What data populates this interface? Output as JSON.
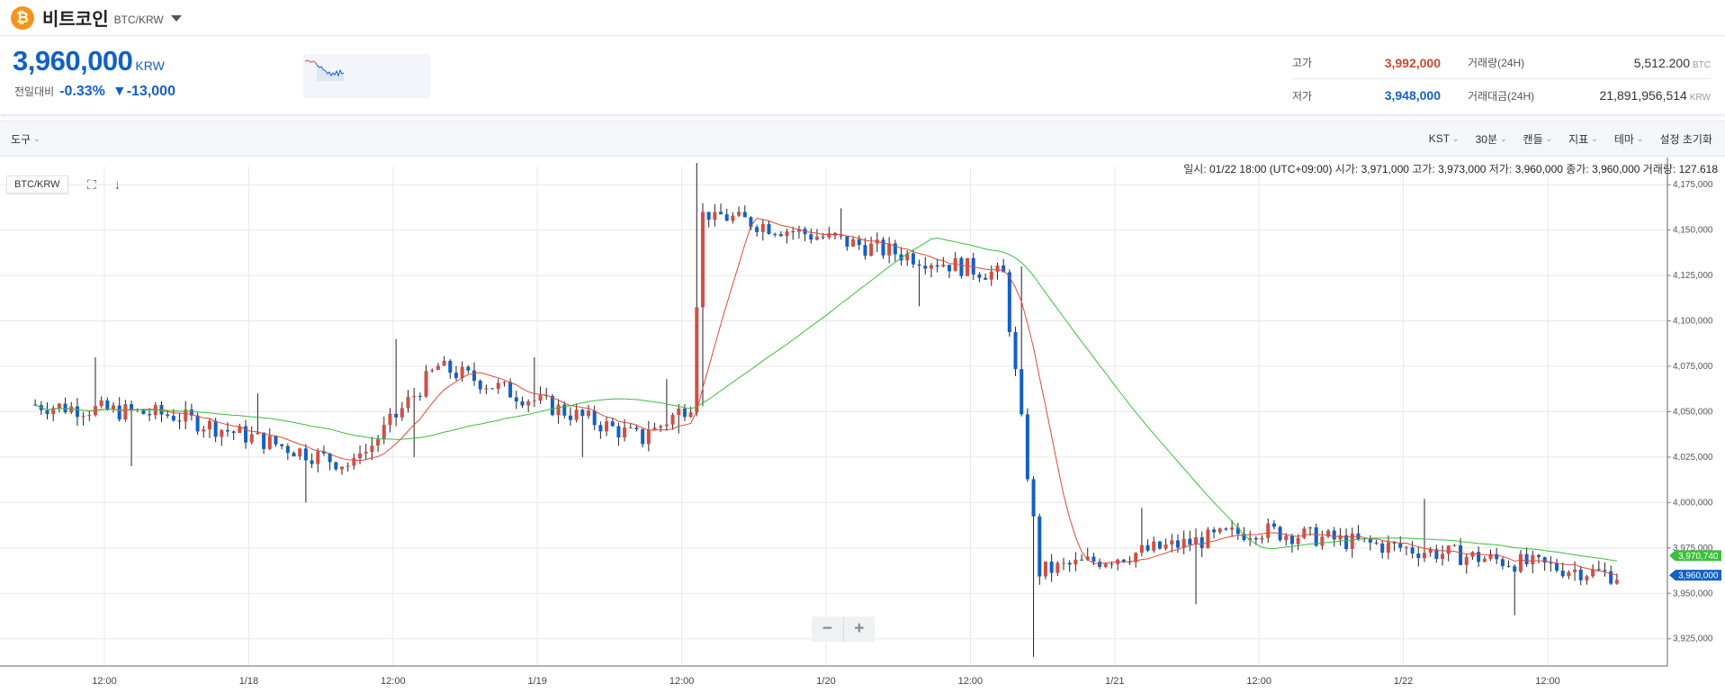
{
  "header": {
    "coin_symbol_glyph": "₿",
    "coin_name": "비트코인",
    "pair": "BTC/KRW"
  },
  "price": {
    "current": "3,960,000",
    "unit": "KRW",
    "change_label": "전일대비",
    "change_pct": "-0.33%",
    "change_amt": "▼-13,000"
  },
  "stats": {
    "high_label": "고가",
    "high_value": "3,992,000",
    "low_label": "저가",
    "low_value": "3,948,000",
    "volume_label": "거래량(24H)",
    "volume_value": "5,512.200",
    "volume_unit": "BTC",
    "trade_value_label": "거래대금(24H)",
    "trade_value_value": "21,891,956,514",
    "trade_value_unit": "KRW"
  },
  "toolbar": {
    "tools": "도구",
    "timezone": "KST",
    "interval": "30분",
    "chart_type": "캔들",
    "indicator": "지표",
    "theme": "테마",
    "reset": "설정 초기화"
  },
  "ohlc_info": {
    "datetime_label": "일시:",
    "datetime": "01/22 18:00 (UTC+09:00)",
    "open_label": "시가:",
    "open": "3,971,000",
    "high_label": "고가:",
    "high": "3,973,000",
    "low_label": "저가:",
    "low": "3,960,000",
    "close_label": "종가:",
    "close": "3,960,000",
    "volume_label": "거래량:",
    "volume": "127.618"
  },
  "chart_controls": {
    "symbol_tag": "BTC/KRW",
    "zoom_out": "−",
    "zoom_in": "+"
  },
  "colors": {
    "up": "#d24f45",
    "down": "#1261c4",
    "ma_short": "#e04a3a",
    "ma_long": "#3cbf3c",
    "grid": "#e6e8ec"
  },
  "chart_data": {
    "type": "candlestick",
    "interval": "30분",
    "pair": "BTC/KRW",
    "ylim": [
      3910000,
      4185000
    ],
    "y_ticks": [
      3925000,
      3950000,
      3975000,
      4000000,
      4025000,
      4050000,
      4075000,
      4100000,
      4125000,
      4150000,
      4175000
    ],
    "y_tick_labels": [
      "3,925,000",
      "3,950,000",
      "3,975,000",
      "4,000,000",
      "4,025,000",
      "4,050,000",
      "4,075,000",
      "4,100,000",
      "4,125,000",
      "4,150,000",
      "4,175,000"
    ],
    "x_tick_labels": [
      "12:00",
      "1/18",
      "12:00",
      "1/19",
      "12:00",
      "1/20",
      "12:00",
      "1/21",
      "12:00",
      "1/22",
      "12:00"
    ],
    "price_labels": [
      {
        "value": 3970740,
        "label": "3,970,740",
        "color": "#3cbf3c"
      },
      {
        "value": 3960000,
        "label": "3,960,000",
        "color": "#1261c4"
      }
    ],
    "segments": [
      {
        "from": "1/17 06:00",
        "to": "1/17 18:00",
        "open": 4054000,
        "close": 4048000,
        "high": 4080000,
        "low": 4020000
      },
      {
        "from": "1/17 18:00",
        "to": "1/18 09:00",
        "open": 4048000,
        "close": 4020000,
        "high": 4060000,
        "low": 4000000
      },
      {
        "from": "1/18 09:00",
        "to": "1/18 16:00",
        "open": 4020000,
        "close": 4075000,
        "high": 4090000,
        "low": 4025000
      },
      {
        "from": "1/18 16:00",
        "to": "1/19 09:00",
        "open": 4075000,
        "close": 4035000,
        "high": 4080000,
        "low": 4025000
      },
      {
        "from": "1/19 09:00",
        "to": "1/19 13:00",
        "open": 4035000,
        "close": 4055000,
        "high": 4068000,
        "low": 4038000
      },
      {
        "from": "1/19 13:00",
        "to": "1/19 14:00",
        "open": 4055000,
        "close": 4160000,
        "high": 4187000,
        "low": 4053000
      },
      {
        "from": "1/19 14:00",
        "to": "1/20 15:00",
        "open": 4160000,
        "close": 4125000,
        "high": 4162000,
        "low": 4108000
      },
      {
        "from": "1/20 15:00",
        "to": "1/20 18:00",
        "open": 4125000,
        "close": 3962000,
        "high": 4130000,
        "low": 3915000
      },
      {
        "from": "1/20 18:00",
        "to": "1/21 12:00",
        "open": 3962000,
        "close": 3985000,
        "high": 3997000,
        "low": 3944000
      },
      {
        "from": "1/21 12:00",
        "to": "1/22 18:00",
        "open": 3985000,
        "close": 3960000,
        "high": 4002000,
        "low": 3938000
      }
    ]
  }
}
